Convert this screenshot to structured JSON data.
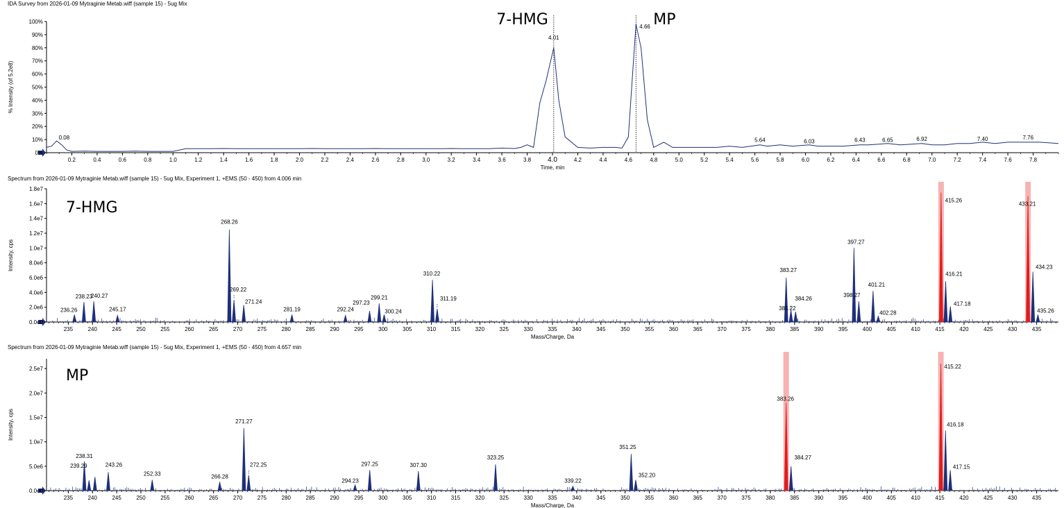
{
  "chart_data": [
    {
      "type": "line",
      "title": "IDA Survey from 2026-01-09 Mytraginie Metab.wiff (sample 15) - 5ug Mix",
      "xlabel": "Time, min",
      "ylabel": "% Intensity (of 5.2e8)",
      "xlim": [
        0.0,
        8.0
      ],
      "ylim": [
        0,
        100
      ],
      "xticks": [
        0.2,
        0.4,
        0.6,
        0.8,
        1.0,
        1.2,
        1.4,
        1.6,
        1.8,
        2.0,
        2.2,
        2.4,
        2.6,
        2.8,
        3.0,
        3.2,
        3.4,
        3.6,
        3.8,
        4.0,
        4.2,
        4.4,
        4.6,
        4.8,
        5.0,
        5.2,
        5.4,
        5.6,
        5.8,
        6.0,
        6.2,
        6.4,
        6.6,
        6.8,
        7.0,
        7.2,
        7.4,
        7.6,
        7.8
      ],
      "xtick_labels": [
        "0.2",
        "0.4",
        "0.6",
        "0.8",
        "1.0",
        "1.2",
        "1.4",
        "1.6",
        "1.8",
        "2.0",
        "2.2",
        "2.4",
        "2.6",
        "2.8",
        "3.0",
        "3.2",
        "3.4",
        "3.6",
        "3.8",
        "4.0",
        "4.2",
        "4.4",
        "4.6",
        "4.8",
        "5.0",
        "5.2",
        "5.4",
        "5.6",
        "5.8",
        "6.0",
        "6.2",
        "6.4",
        "6.6",
        "6.8",
        "7.0",
        "7.2",
        "7.4",
        "7.6",
        "7.8"
      ],
      "yticks": [
        0,
        10,
        20,
        30,
        40,
        50,
        60,
        70,
        80,
        90,
        100
      ],
      "ytick_labels": [
        "0%",
        "10%",
        "20%",
        "30%",
        "40%",
        "50%",
        "60%",
        "70%",
        "80%",
        "90%",
        "100%"
      ],
      "series": [
        {
          "x": [
            0.0,
            0.04,
            0.08,
            0.12,
            0.16,
            0.2,
            0.3,
            0.4,
            0.5,
            0.6,
            0.7,
            0.8,
            0.9,
            1.0,
            1.05,
            1.1,
            1.2,
            1.3,
            1.4,
            1.5,
            1.6,
            1.7,
            1.8,
            1.9,
            2.0,
            2.1,
            2.2,
            2.3,
            2.4,
            2.5,
            2.6,
            2.7,
            2.8,
            2.9,
            3.0,
            3.1,
            3.2,
            3.3,
            3.4,
            3.5,
            3.6,
            3.7,
            3.75,
            3.8,
            3.85,
            3.9,
            3.95,
            4.01,
            4.05,
            4.1,
            4.2,
            4.3,
            4.4,
            4.5,
            4.55,
            4.6,
            4.66,
            4.7,
            4.75,
            4.8,
            4.88,
            4.95,
            5.0,
            5.1,
            5.2,
            5.3,
            5.4,
            5.5,
            5.64,
            5.7,
            5.8,
            5.9,
            6.03,
            6.1,
            6.2,
            6.3,
            6.43,
            6.5,
            6.65,
            6.75,
            6.92,
            7.0,
            7.1,
            7.2,
            7.3,
            7.4,
            7.5,
            7.6,
            7.76,
            7.85,
            8.0
          ],
          "y": [
            4,
            5,
            9,
            6,
            2,
            1,
            1.2,
            1,
            1,
            1,
            1.2,
            1,
            1,
            1,
            2,
            3,
            3,
            3,
            3.2,
            3,
            3,
            3,
            3,
            3,
            3,
            3.2,
            3,
            3,
            3,
            3,
            3.2,
            3,
            3,
            3,
            3,
            3,
            3.2,
            3,
            3,
            3,
            3.5,
            3.2,
            4,
            6,
            4,
            38,
            55,
            80,
            40,
            12,
            4,
            3.5,
            4,
            4,
            3.5,
            12,
            98,
            80,
            25,
            4,
            8,
            4,
            4,
            4,
            4,
            4,
            5,
            4,
            6,
            5,
            6,
            5,
            6,
            5,
            5,
            5,
            6,
            6,
            7,
            6,
            7,
            6,
            6,
            7,
            7,
            8,
            7,
            8,
            8,
            8,
            7
          ]
        }
      ],
      "annotations": [
        {
          "x": 0.08,
          "y": 9,
          "text": "0.08"
        },
        {
          "x": 4.01,
          "y": 80,
          "text": "4.01"
        },
        {
          "x": 4.66,
          "y": 98,
          "text": "4.66"
        },
        {
          "x": 5.64,
          "y": 6,
          "text": "5.64"
        },
        {
          "x": 6.03,
          "y": 5,
          "text": "6.03"
        },
        {
          "x": 6.43,
          "y": 6,
          "text": "6.43"
        },
        {
          "x": 6.65,
          "y": 6,
          "text": "6.65"
        },
        {
          "x": 6.92,
          "y": 7,
          "text": "6.92"
        },
        {
          "x": 7.4,
          "y": 7,
          "text": "7.40"
        },
        {
          "x": 7.76,
          "y": 8,
          "text": "7.76"
        }
      ],
      "markers": [
        {
          "x": 4.01,
          "text": "7-HMG"
        },
        {
          "x": 4.66,
          "text": "MP"
        }
      ],
      "grid": false
    },
    {
      "type": "bar",
      "title": "Spectrum from 2026-01-09 Mytraginie Metab.wiff (sample 15) - 5ug Mix, Experiment 1, +EMS (50 - 450) from 4.006 min",
      "panel_label": "7-HMG",
      "xlabel": "Mass/Charge, Da",
      "ylabel": "Intensity, cps",
      "xlim": [
        230.5,
        439.5
      ],
      "ylim": [
        0,
        18000000
      ],
      "xticks": [
        235,
        240,
        245,
        250,
        255,
        260,
        265,
        270,
        275,
        280,
        285,
        290,
        295,
        300,
        305,
        310,
        315,
        320,
        325,
        330,
        335,
        340,
        345,
        350,
        355,
        360,
        365,
        370,
        375,
        380,
        385,
        390,
        395,
        400,
        405,
        410,
        415,
        420,
        425,
        430,
        435
      ],
      "xtick_labels": [
        "235",
        "240",
        "245",
        "250",
        "255",
        "260",
        "265",
        "270",
        "275",
        "280",
        "285",
        "290",
        "295",
        "300",
        "305",
        "310",
        "315",
        "320",
        "325",
        "330",
        "335",
        "340",
        "345",
        "350",
        "355",
        "360",
        "365",
        "370",
        "375",
        "380",
        "385",
        "390",
        "395",
        "400",
        "405",
        "410",
        "415",
        "420",
        "425",
        "430",
        "435"
      ],
      "yticks": [
        0,
        2000000,
        4000000,
        6000000,
        8000000,
        10000000,
        12000000,
        14000000,
        16000000,
        18000000
      ],
      "ytick_labels": [
        "0.0e0",
        "2.0e6",
        "4.0e6",
        "6.0e6",
        "8.0e6",
        "1.0e7",
        "1.2e7",
        "1.4e7",
        "1.6e7",
        "1.8e7"
      ],
      "peaks": [
        {
          "mz": 236.26,
          "value": 1000000,
          "label": "236.26"
        },
        {
          "mz": 238.23,
          "value": 2700000,
          "label": "238.23"
        },
        {
          "mz": 240.27,
          "value": 2800000,
          "label": "240.27"
        },
        {
          "mz": 245.17,
          "value": 900000,
          "label": "245.17"
        },
        {
          "mz": 268.26,
          "value": 12500000,
          "label": "268.26"
        },
        {
          "mz": 269.22,
          "value": 3000000,
          "label": "269.22"
        },
        {
          "mz": 271.24,
          "value": 2300000,
          "label": "271.24"
        },
        {
          "mz": 281.19,
          "value": 1000000,
          "label": "281.19"
        },
        {
          "mz": 292.24,
          "value": 900000,
          "label": "292.24"
        },
        {
          "mz": 297.23,
          "value": 1500000,
          "label": "297.23"
        },
        {
          "mz": 299.21,
          "value": 2500000,
          "label": "299.21"
        },
        {
          "mz": 300.24,
          "value": 1000000,
          "label": "300.24"
        },
        {
          "mz": 310.22,
          "value": 5700000,
          "label": "310.22"
        },
        {
          "mz": 311.19,
          "value": 1800000,
          "label": "311.19"
        },
        {
          "mz": 383.27,
          "value": 6000000,
          "label": "383.27"
        },
        {
          "mz": 384.26,
          "value": 1600000,
          "label": "384.26"
        },
        {
          "mz": 385.22,
          "value": 1400000,
          "label": "385.22"
        },
        {
          "mz": 397.27,
          "value": 10000000,
          "label": "397.27"
        },
        {
          "mz": 398.27,
          "value": 2800000,
          "label": "398.27"
        },
        {
          "mz": 401.21,
          "value": 4200000,
          "label": "401.21"
        },
        {
          "mz": 402.28,
          "value": 800000,
          "label": "402.28"
        },
        {
          "mz": 415.26,
          "value": 17500000,
          "label": "415.26"
        },
        {
          "mz": 416.21,
          "value": 5500000,
          "label": "416.21"
        },
        {
          "mz": 417.18,
          "value": 2100000,
          "label": "417.18"
        },
        {
          "mz": 433.21,
          "value": 17000000,
          "label": "433.21"
        },
        {
          "mz": 434.23,
          "value": 6800000,
          "label": "434.23"
        },
        {
          "mz": 435.26,
          "value": 1000000,
          "label": "435.26"
        }
      ],
      "highlighted_mz": [
        415.26,
        433.21
      ],
      "highlight_color": "#f4a6a6",
      "highlight_peak_color": "#e01c1c",
      "grid": false
    },
    {
      "type": "bar",
      "title": "Spectrum from 2026-01-09 Mytraginie Metab.wiff (sample 15) - 5ug Mix, Experiment 1, +EMS (50 - 450) from 4.657 min",
      "panel_label": "MP",
      "xlabel": "Mass/Charge, Da",
      "ylabel": "Intensity, cps",
      "xlim": [
        230.5,
        439.5
      ],
      "ylim": [
        0,
        27000000
      ],
      "xticks": [
        235,
        240,
        245,
        250,
        255,
        260,
        265,
        270,
        275,
        280,
        285,
        290,
        295,
        300,
        305,
        310,
        315,
        320,
        325,
        330,
        335,
        340,
        345,
        350,
        355,
        360,
        365,
        370,
        375,
        380,
        385,
        390,
        395,
        400,
        405,
        410,
        415,
        420,
        425,
        430,
        435
      ],
      "xtick_labels": [
        "235",
        "240",
        "245",
        "250",
        "255",
        "260",
        "265",
        "270",
        "275",
        "280",
        "285",
        "290",
        "295",
        "300",
        "305",
        "310",
        "315",
        "320",
        "325",
        "330",
        "335",
        "340",
        "345",
        "350",
        "355",
        "360",
        "365",
        "370",
        "375",
        "380",
        "385",
        "390",
        "395",
        "400",
        "405",
        "410",
        "415",
        "420",
        "425",
        "430",
        "435"
      ],
      "yticks": [
        0,
        5000000,
        10000000,
        15000000,
        20000000,
        25000000
      ],
      "ytick_labels": [
        "0.0e0",
        "5.0e6",
        "1.0e7",
        "1.5e7",
        "2.0e7",
        "2.5e7"
      ],
      "peaks": [
        {
          "mz": 238.31,
          "value": 6000000,
          "label": "238.31"
        },
        {
          "mz": 239.29,
          "value": 2100000,
          "label": "239.29"
        },
        {
          "mz": 240.5,
          "value": 2800000,
          "label": ""
        },
        {
          "mz": 243.26,
          "value": 3800000,
          "label": "243.26"
        },
        {
          "mz": 252.33,
          "value": 2200000,
          "label": "252.33"
        },
        {
          "mz": 266.28,
          "value": 1800000,
          "label": "266.28"
        },
        {
          "mz": 271.27,
          "value": 12800000,
          "label": "271.27"
        },
        {
          "mz": 272.25,
          "value": 3200000,
          "label": "272.25"
        },
        {
          "mz": 294.23,
          "value": 1200000,
          "label": "294.23"
        },
        {
          "mz": 297.25,
          "value": 4200000,
          "label": "297.25"
        },
        {
          "mz": 307.3,
          "value": 4000000,
          "label": "307.30"
        },
        {
          "mz": 323.25,
          "value": 5400000,
          "label": "323.25"
        },
        {
          "mz": 339.22,
          "value": 900000,
          "label": "339.22"
        },
        {
          "mz": 351.25,
          "value": 7500000,
          "label": "351.25"
        },
        {
          "mz": 352.2,
          "value": 2200000,
          "label": "352.20"
        },
        {
          "mz": 383.26,
          "value": 18000000,
          "label": "383.26"
        },
        {
          "mz": 384.27,
          "value": 5000000,
          "label": "384.27"
        },
        {
          "mz": 415.22,
          "value": 26000000,
          "label": "415.22"
        },
        {
          "mz": 416.18,
          "value": 12300000,
          "label": "416.18"
        },
        {
          "mz": 417.15,
          "value": 4200000,
          "label": "417.15"
        }
      ],
      "highlighted_mz": [
        383.26,
        415.22
      ],
      "highlight_color": "#f4a6a6",
      "highlight_peak_color": "#e01c1c",
      "grid": false
    }
  ],
  "colors": {
    "trace": "#1f2f7a",
    "axis": "#000000",
    "arrow": "#1f2f7a"
  }
}
